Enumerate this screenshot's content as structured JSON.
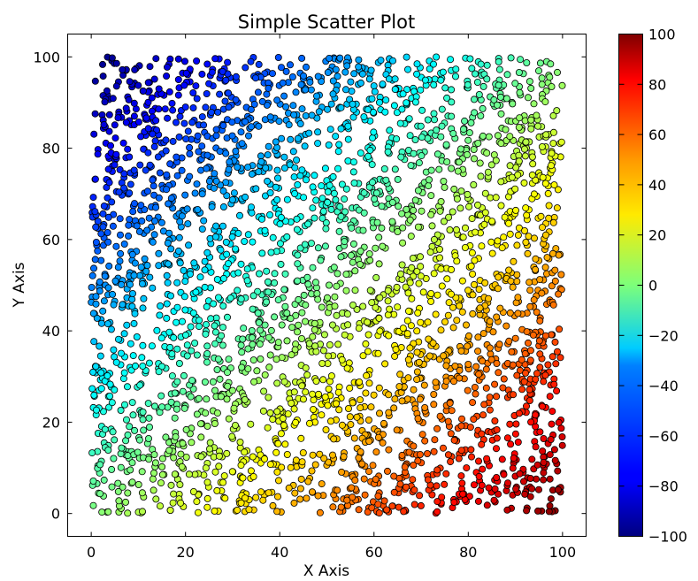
{
  "chart_data": {
    "type": "scatter",
    "title": "Simple Scatter Plot",
    "xlabel": "X Axis",
    "ylabel": "Y Axis",
    "xlim": [
      -5,
      105
    ],
    "ylim": [
      -5,
      105
    ],
    "xticks": [
      "0",
      "20",
      "40",
      "60",
      "80",
      "100"
    ],
    "yticks": [
      "0",
      "20",
      "40",
      "60",
      "80",
      "100"
    ],
    "x_tick_values": [
      0,
      20,
      40,
      60,
      80,
      100
    ],
    "y_tick_values": [
      0,
      20,
      40,
      60,
      80,
      100
    ],
    "grid": false,
    "colormap": "jet",
    "color_value": "x - y",
    "colorbar": {
      "range": [
        -100,
        100
      ],
      "tick_values": [
        -100,
        -80,
        -60,
        -40,
        -20,
        0,
        20,
        40,
        60,
        80,
        100
      ],
      "ticks": [
        "−100",
        "−80",
        "−60",
        "−40",
        "−20",
        "0",
        "20",
        "40",
        "60",
        "80",
        "100"
      ]
    },
    "points": {
      "count": 3000,
      "x_range": [
        0,
        100
      ],
      "y_range": [
        0,
        100
      ],
      "distribution": "uniform"
    },
    "marker": {
      "shape": "circle",
      "edge_color": "#000000"
    }
  }
}
